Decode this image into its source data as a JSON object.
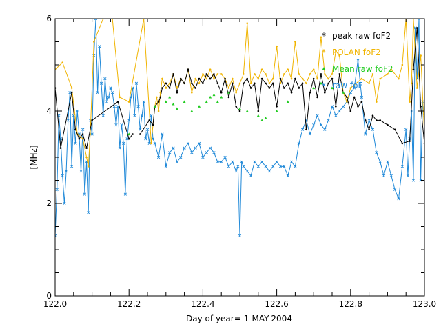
{
  "chart_data": {
    "type": "line",
    "xlabel": "Day of year= 1-MAY-2004",
    "ylabel": "[MHz]",
    "xlim": [
      122.0,
      123.0
    ],
    "ylim": [
      0,
      6
    ],
    "x_ticks": [
      122.0,
      122.2,
      122.4,
      122.6,
      122.8,
      123.0
    ],
    "x_tick_labels": [
      "122.0",
      "122.2",
      "122.4",
      "122.6",
      "122.8",
      "123.0"
    ],
    "y_ticks": [
      0,
      2,
      4,
      6
    ],
    "y_tick_labels": [
      "0",
      "2",
      "4",
      "6"
    ],
    "legend_position": "top-right",
    "series": [
      {
        "name": "raw foF",
        "legend_label": "raw foF",
        "color": "#1e88d8",
        "marker": "x",
        "x": [
          122.0,
          122.005,
          122.01,
          122.015,
          122.02,
          122.025,
          122.03,
          122.035,
          122.04,
          122.045,
          122.05,
          122.055,
          122.06,
          122.065,
          122.07,
          122.075,
          122.08,
          122.085,
          122.09,
          122.095,
          122.1,
          122.105,
          122.11,
          122.115,
          122.12,
          122.125,
          122.13,
          122.135,
          122.14,
          122.145,
          122.15,
          122.155,
          122.16,
          122.165,
          122.17,
          122.175,
          122.18,
          122.185,
          122.19,
          122.195,
          122.2,
          122.205,
          122.21,
          122.215,
          122.22,
          122.225,
          122.23,
          122.235,
          122.24,
          122.245,
          122.25,
          122.255,
          122.26,
          122.265,
          122.27,
          122.28,
          122.29,
          122.3,
          122.31,
          122.32,
          122.33,
          122.34,
          122.35,
          122.36,
          122.37,
          122.38,
          122.39,
          122.4,
          122.41,
          122.42,
          122.43,
          122.44,
          122.45,
          122.46,
          122.47,
          122.48,
          122.49,
          122.495,
          122.5,
          122.505,
          122.51,
          122.52,
          122.53,
          122.54,
          122.55,
          122.56,
          122.57,
          122.58,
          122.59,
          122.6,
          122.61,
          122.62,
          122.63,
          122.64,
          122.65,
          122.66,
          122.67,
          122.68,
          122.69,
          122.7,
          122.71,
          122.72,
          122.73,
          122.74,
          122.75,
          122.76,
          122.77,
          122.78,
          122.79,
          122.8,
          122.81,
          122.82,
          122.83,
          122.84,
          122.85,
          122.86,
          122.87,
          122.88,
          122.89,
          122.9,
          122.91,
          122.92,
          122.93,
          122.94,
          122.95,
          122.955,
          122.96,
          122.965,
          122.97,
          122.975,
          122.98,
          122.985,
          122.99,
          122.995,
          123.0
        ],
        "values": [
          1.3,
          2.3,
          3.9,
          3.4,
          2.6,
          2.0,
          2.7,
          3.8,
          4.4,
          2.8,
          3.9,
          3.3,
          4.0,
          3.5,
          2.7,
          3.6,
          2.2,
          2.9,
          1.8,
          3.8,
          3.5,
          5.2,
          6.0,
          4.4,
          5.4,
          4.6,
          3.9,
          4.7,
          4.2,
          4.3,
          4.5,
          4.4,
          4.1,
          3.7,
          4.1,
          3.2,
          3.7,
          3.3,
          2.2,
          3.4,
          3.8,
          4.3,
          4.5,
          3.9,
          4.6,
          4.1,
          3.6,
          3.9,
          4.2,
          3.4,
          3.6,
          3.3,
          3.9,
          3.4,
          3.3,
          3.0,
          3.5,
          2.8,
          3.1,
          3.2,
          2.9,
          3.0,
          3.2,
          3.3,
          3.1,
          3.2,
          3.3,
          3.0,
          3.1,
          3.2,
          3.1,
          2.9,
          2.9,
          3.0,
          2.8,
          2.9,
          2.7,
          2.8,
          1.3,
          2.9,
          2.8,
          2.7,
          2.6,
          2.9,
          2.8,
          2.9,
          2.8,
          2.7,
          2.8,
          2.9,
          2.8,
          2.8,
          2.6,
          2.9,
          2.8,
          3.3,
          3.6,
          3.8,
          3.5,
          3.7,
          3.9,
          3.7,
          3.6,
          3.8,
          4.1,
          3.9,
          4.0,
          4.1,
          4.2,
          4.4,
          4.5,
          5.1,
          4.3,
          3.5,
          3.8,
          3.6,
          3.1,
          2.9,
          2.6,
          2.9,
          2.6,
          2.3,
          2.1,
          2.8,
          3.6,
          2.6,
          3.4,
          4.0,
          2.5,
          5.8,
          4.7,
          6.0,
          2.5,
          4.2,
          3.9
        ]
      },
      {
        "name": "POLAN foF2",
        "legend_label": "POLAN foF2",
        "color": "#f0b400",
        "marker": "dot",
        "x": [
          122.0,
          122.02,
          122.045,
          122.06,
          122.075,
          122.085,
          122.09,
          122.095,
          122.105,
          122.13,
          122.155,
          122.175,
          122.2,
          122.24,
          122.26,
          122.27,
          122.275,
          122.28,
          122.285,
          122.29,
          122.3,
          122.31,
          122.32,
          122.33,
          122.34,
          122.35,
          122.36,
          122.37,
          122.38,
          122.39,
          122.4,
          122.41,
          122.42,
          122.43,
          122.44,
          122.45,
          122.46,
          122.47,
          122.48,
          122.49,
          122.5,
          122.51,
          122.52,
          122.53,
          122.54,
          122.55,
          122.56,
          122.57,
          122.58,
          122.59,
          122.6,
          122.61,
          122.62,
          122.63,
          122.64,
          122.65,
          122.66,
          122.67,
          122.68,
          122.69,
          122.7,
          122.71,
          122.72,
          122.73,
          122.74,
          122.75,
          122.76,
          122.77,
          122.78,
          122.79,
          122.8,
          122.83,
          122.85,
          122.86,
          122.87,
          122.88,
          122.9,
          122.91,
          122.93,
          122.94,
          122.95,
          122.96,
          122.965,
          122.97,
          122.98,
          122.99,
          123.0
        ],
        "values": [
          4.9,
          5.05,
          4.5,
          3.5,
          3.4,
          3.0,
          2.8,
          3.5,
          5.5,
          6.0,
          6.0,
          4.3,
          4.2,
          6.0,
          3.3,
          4.1,
          4.3,
          4.0,
          4.4,
          4.7,
          4.5,
          4.6,
          4.8,
          4.5,
          4.7,
          4.6,
          4.9,
          4.4,
          4.7,
          4.6,
          4.8,
          4.7,
          4.9,
          4.7,
          4.8,
          4.8,
          4.7,
          4.5,
          4.7,
          4.4,
          4.6,
          4.8,
          5.9,
          4.6,
          4.8,
          4.7,
          4.9,
          4.8,
          4.6,
          4.7,
          5.4,
          4.6,
          4.8,
          4.9,
          4.7,
          5.5,
          4.8,
          4.7,
          4.6,
          4.8,
          4.9,
          4.7,
          5.6,
          4.8,
          4.7,
          4.8,
          5.3,
          5.2,
          4.4,
          4.2,
          4.5,
          4.7,
          4.6,
          4.8,
          4.2,
          4.7,
          4.8,
          4.9,
          4.7,
          5.0,
          6.0,
          4.2,
          4.6,
          6.0,
          4.5,
          5.2,
          3.5
        ]
      },
      {
        "name": "peak raw foF2",
        "legend_label": "peak raw foF2",
        "color": "#000000",
        "marker": "dot",
        "x": [
          122.0,
          122.015,
          122.045,
          122.055,
          122.065,
          122.075,
          122.085,
          122.1,
          122.17,
          122.2,
          122.21,
          122.23,
          122.255,
          122.265,
          122.27,
          122.28,
          122.285,
          122.29,
          122.3,
          122.31,
          122.32,
          122.33,
          122.34,
          122.35,
          122.36,
          122.37,
          122.38,
          122.39,
          122.4,
          122.41,
          122.42,
          122.43,
          122.44,
          122.45,
          122.46,
          122.47,
          122.48,
          122.49,
          122.5,
          122.51,
          122.52,
          122.53,
          122.54,
          122.55,
          122.56,
          122.57,
          122.58,
          122.59,
          122.6,
          122.61,
          122.62,
          122.63,
          122.64,
          122.65,
          122.66,
          122.67,
          122.68,
          122.69,
          122.7,
          122.71,
          122.72,
          122.73,
          122.74,
          122.75,
          122.76,
          122.77,
          122.78,
          122.79,
          122.8,
          122.81,
          122.82,
          122.83,
          122.84,
          122.85,
          122.86,
          122.87,
          122.88,
          122.9,
          122.92,
          122.94,
          122.96,
          122.97,
          122.98,
          122.99,
          123.0
        ],
        "values": [
          4.5,
          3.2,
          4.4,
          3.6,
          3.4,
          3.5,
          3.2,
          3.8,
          4.2,
          3.4,
          3.5,
          3.5,
          3.8,
          3.7,
          4.1,
          4.2,
          4.3,
          4.5,
          4.6,
          4.5,
          4.8,
          4.4,
          4.7,
          4.6,
          4.9,
          4.6,
          4.5,
          4.7,
          4.6,
          4.8,
          4.7,
          4.8,
          4.6,
          4.4,
          4.7,
          4.3,
          4.6,
          4.1,
          4.0,
          4.6,
          4.7,
          4.5,
          4.6,
          4.0,
          4.7,
          4.6,
          4.5,
          4.6,
          4.1,
          4.7,
          4.5,
          4.6,
          4.4,
          4.7,
          4.5,
          4.6,
          3.6,
          4.4,
          4.7,
          4.3,
          4.8,
          4.4,
          4.6,
          4.7,
          4.1,
          4.8,
          4.4,
          4.3,
          4.0,
          4.3,
          4.1,
          4.2,
          3.8,
          3.6,
          3.9,
          3.8,
          3.8,
          3.7,
          3.6,
          3.3,
          3.35,
          4.9,
          5.8,
          4.1,
          3.3
        ]
      },
      {
        "name": "Mean raw foF2",
        "legend_label": "Mean raw foF2",
        "color": "#22cc22",
        "marker": "triangle",
        "x": [
          122.2,
          122.27,
          122.3,
          122.31,
          122.32,
          122.33,
          122.35,
          122.37,
          122.39,
          122.41,
          122.42,
          122.43,
          122.44,
          122.45,
          122.47,
          122.5,
          122.52,
          122.55,
          122.56,
          122.57,
          122.6,
          122.63,
          122.7,
          122.72,
          122.75,
          122.78
        ],
        "values": [
          3.5,
          4.1,
          4.2,
          4.3,
          4.15,
          4.05,
          4.2,
          4.0,
          4.1,
          4.2,
          4.3,
          4.35,
          4.2,
          4.3,
          4.4,
          4.05,
          4.0,
          3.9,
          3.8,
          3.85,
          4.0,
          4.2,
          4.5,
          4.6,
          4.5,
          4.4
        ]
      }
    ]
  }
}
